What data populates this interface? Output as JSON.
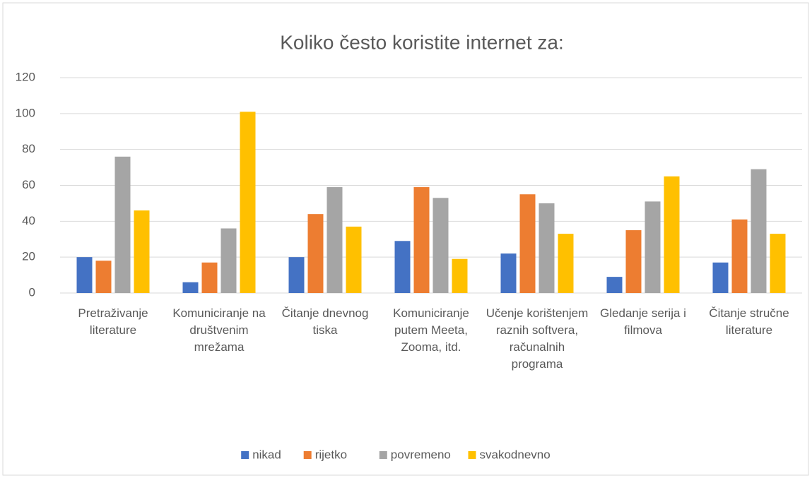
{
  "chart_data": {
    "type": "bar",
    "title": "Koliko često koristite internet za:",
    "categories": [
      "Pretraživanje literature",
      "Komuniciranje na društvenim mrežama",
      "Čitanje dnevnog tiska",
      "Komuniciranje putem Meeta, Zooma, itd.",
      "Učenje korištenjem raznih softvera, računalnih programa",
      "Gledanje serija i filmova",
      "Čitanje stručne literature"
    ],
    "series": [
      {
        "name": "nikad",
        "color": "#4472c4",
        "values": [
          20,
          6,
          20,
          29,
          22,
          9,
          17
        ]
      },
      {
        "name": "rijetko",
        "color": "#ed7d31",
        "values": [
          18,
          17,
          44,
          59,
          55,
          35,
          41
        ]
      },
      {
        "name": "povremeno",
        "color": "#a5a5a5",
        "values": [
          76,
          36,
          59,
          53,
          50,
          51,
          69
        ]
      },
      {
        "name": "svakodnevno",
        "color": "#ffc000",
        "values": [
          46,
          101,
          37,
          19,
          33,
          65,
          33
        ]
      }
    ],
    "ylim": [
      0,
      120
    ],
    "yticks": [
      0,
      20,
      40,
      60,
      80,
      100,
      120
    ],
    "grid": true,
    "legend": "bottom"
  }
}
